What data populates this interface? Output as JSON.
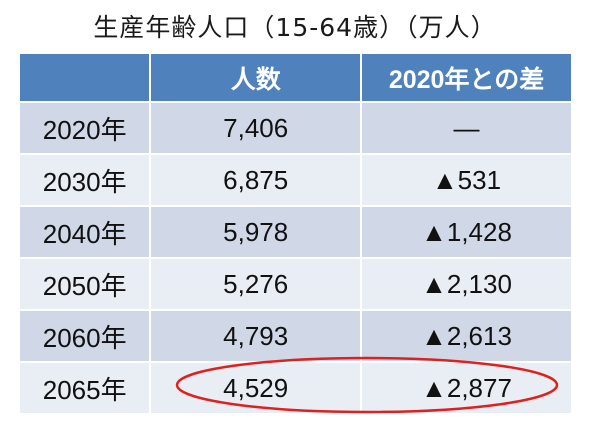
{
  "title": "生産年齢人口（15-64歳）（万人）",
  "chart_data": {
    "type": "table",
    "title": "生産年齢人口（15-64歳）（万人）",
    "columns": [
      "",
      "人数",
      "2020年との差"
    ],
    "rows": [
      {
        "year": "2020年",
        "population": "7,406",
        "diff": "—"
      },
      {
        "year": "2030年",
        "population": "6,875",
        "diff": "▲531"
      },
      {
        "year": "2040年",
        "population": "5,978",
        "diff": "▲1,428"
      },
      {
        "year": "2050年",
        "population": "5,276",
        "diff": "▲2,130"
      },
      {
        "year": "2060年",
        "population": "4,793",
        "diff": "▲2,613"
      },
      {
        "year": "2065年",
        "population": "4,529",
        "diff": "▲2,877"
      }
    ],
    "highlighted_row": "2065年"
  },
  "colors": {
    "header": "#4f81bd",
    "row_odd": "#d0d8e8",
    "row_even": "#e9edf4",
    "highlight_ellipse": "#e0201f"
  }
}
